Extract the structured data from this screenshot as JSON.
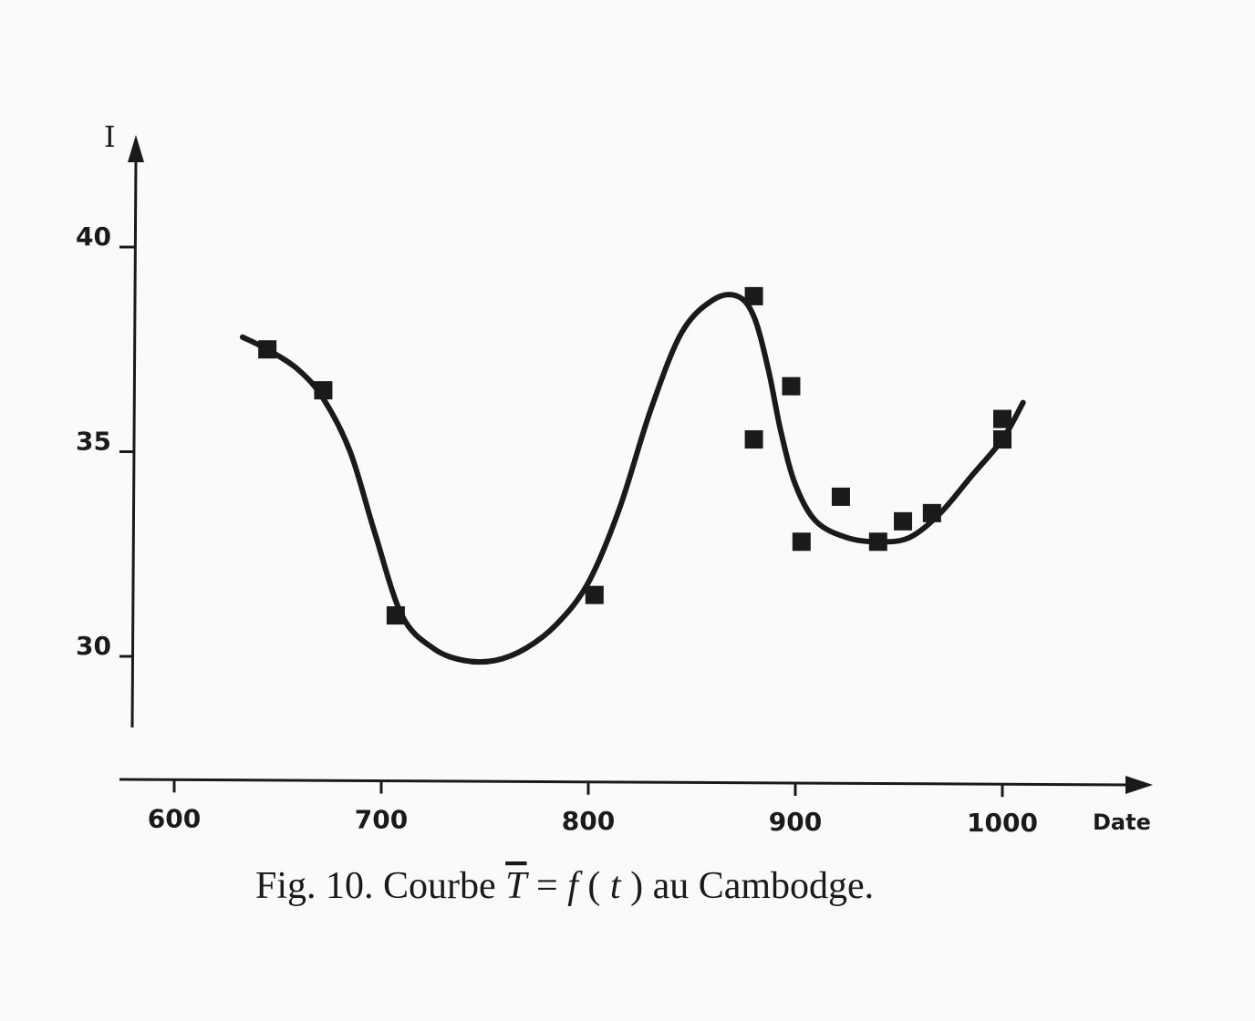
{
  "chart_data": {
    "type": "scatter",
    "caption": {
      "prefix": "Fig. 10. Courbe ",
      "t_bar": "T",
      "equals": " = ",
      "f": "f",
      "open_paren": "(",
      "t": "t",
      "close_paren": ")",
      "suffix": " au Cambodge."
    },
    "xlabel": "Date",
    "ylabel": "I",
    "x_ticks": [
      600,
      700,
      800,
      900,
      1000
    ],
    "y_ticks": [
      30,
      35,
      40
    ],
    "xlim": [
      570,
      1060
    ],
    "ylim": [
      28,
      43
    ],
    "grid": false,
    "series": [
      {
        "kind": "points",
        "x": [
          645,
          672,
          707,
          803,
          880,
          880,
          898,
          903,
          922,
          940,
          952,
          966,
          1000,
          1000
        ],
        "y": [
          37.5,
          36.5,
          31.0,
          31.5,
          38.8,
          35.3,
          36.6,
          32.8,
          33.9,
          32.8,
          33.3,
          33.5,
          35.8,
          35.3
        ]
      },
      {
        "kind": "curve",
        "x": [
          633,
          645,
          660,
          672,
          685,
          697,
          710,
          725,
          740,
          755,
          770,
          785,
          800,
          815,
          830,
          845,
          860,
          872,
          880,
          887,
          893,
          900,
          910,
          925,
          940,
          955,
          970,
          985,
          1000,
          1010
        ],
        "y": [
          37.8,
          37.5,
          37.0,
          36.3,
          35.0,
          33.0,
          31.0,
          30.2,
          29.9,
          29.9,
          30.2,
          30.8,
          31.8,
          33.6,
          36.0,
          37.9,
          38.7,
          38.8,
          38.3,
          37.0,
          35.5,
          34.2,
          33.3,
          32.9,
          32.8,
          32.9,
          33.5,
          34.4,
          35.3,
          36.2
        ]
      }
    ],
    "marker": "square",
    "color": "#1a1a1a"
  }
}
